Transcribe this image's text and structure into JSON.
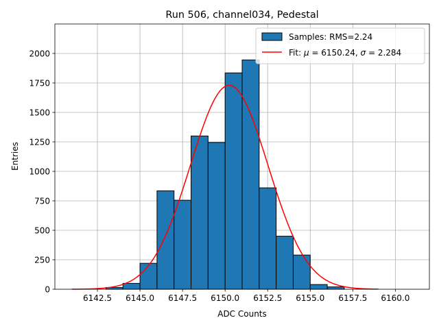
{
  "chart_data": {
    "type": "bar",
    "title": "Run 506, channel034, Pedestal",
    "xlabel": "ADC Counts",
    "ylabel": "Entries",
    "xlim": [
      6140.0,
      6162.0
    ],
    "ylim": [
      0,
      2250
    ],
    "xticks": [
      6142.5,
      6145.0,
      6147.5,
      6150.0,
      6152.5,
      6155.0,
      6157.5,
      6160.0
    ],
    "xtick_labels": [
      "6142.5",
      "6145.0",
      "6147.5",
      "6150.0",
      "6152.5",
      "6155.0",
      "6157.5",
      "6160.0"
    ],
    "yticks": [
      0,
      250,
      500,
      750,
      1000,
      1250,
      1500,
      1750,
      2000
    ],
    "ytick_labels": [
      "0",
      "250",
      "500",
      "750",
      "1000",
      "1250",
      "1500",
      "1750",
      "2000"
    ],
    "grid": true,
    "legend_position": "top-right",
    "bin_edges": [
      6143,
      6144,
      6145,
      6146,
      6147,
      6148,
      6149,
      6150,
      6151,
      6152,
      6153,
      6154,
      6155,
      6156,
      6157
    ],
    "bin_counts": [
      15,
      50,
      220,
      835,
      755,
      1300,
      1245,
      1835,
      1945,
      860,
      450,
      290,
      40,
      20
    ],
    "histogram": {
      "name": "Samples: RMS=2.24",
      "color": "#1f77b4",
      "edgecolor": "#000000"
    },
    "fit": {
      "name_prefix": "Fit: ",
      "mu_symbol": "μ",
      "mu_text": " = 6150.24, ",
      "sigma_symbol": "σ",
      "sigma_text": " = 2.284",
      "mu": 6150.24,
      "sigma": 2.284,
      "amplitude": 1730,
      "x_range": [
        6141.0,
        6159.0
      ],
      "color": "#ff0000"
    }
  }
}
